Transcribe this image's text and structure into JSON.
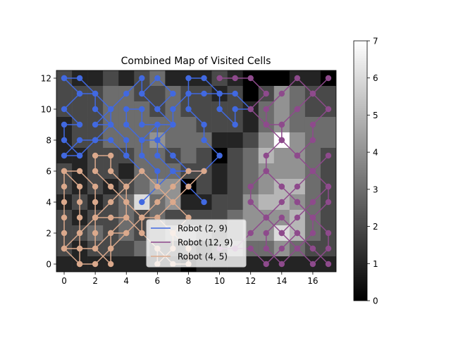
{
  "chart_data": {
    "type": "heatmap",
    "title": "Combined Map of Visited Cells",
    "xlabel": "",
    "ylabel": "",
    "xlim": [
      -0.5,
      17.5
    ],
    "ylim": [
      -0.5,
      12.5
    ],
    "xticks": [
      0,
      2,
      4,
      6,
      8,
      10,
      12,
      14,
      16
    ],
    "yticks": [
      0,
      2,
      4,
      6,
      8,
      10,
      12
    ],
    "colorbar": {
      "min": 0,
      "max": 7,
      "ticks": [
        0,
        1,
        2,
        3,
        4,
        5,
        6,
        7
      ],
      "colormap": "gray"
    },
    "grid_values": [
      [
        2,
        1,
        1,
        2,
        1,
        2,
        3,
        1,
        1,
        1,
        2,
        1,
        0,
        0,
        0,
        1,
        1,
        0
      ],
      [
        2,
        2,
        2,
        3,
        3,
        2,
        2,
        3,
        2,
        2,
        1,
        2,
        0,
        2,
        4,
        3,
        2,
        2
      ],
      [
        2,
        2,
        2,
        3,
        3,
        3,
        2,
        3,
        2,
        2,
        2,
        2,
        1,
        3,
        4,
        3,
        2,
        2
      ],
      [
        1,
        2,
        2,
        3,
        3,
        3,
        3,
        3,
        3,
        2,
        2,
        2,
        1,
        3,
        4,
        3,
        3,
        3
      ],
      [
        1,
        2,
        2,
        3,
        3,
        3,
        4,
        3,
        3,
        3,
        1,
        1,
        2,
        4,
        7,
        4,
        3,
        3
      ],
      [
        1,
        1,
        2,
        2,
        2,
        3,
        3,
        2,
        3,
        2,
        0,
        2,
        3,
        5,
        4,
        4,
        3,
        2
      ],
      [
        2,
        1,
        2,
        2,
        1,
        3,
        3,
        3,
        2,
        2,
        1,
        2,
        3,
        4,
        4,
        4,
        3,
        2
      ],
      [
        2,
        1,
        2,
        1,
        2,
        3,
        4,
        4,
        0,
        2,
        1,
        2,
        3,
        4,
        5,
        5,
        3,
        2
      ],
      [
        1,
        2,
        1,
        2,
        3,
        6,
        3,
        4,
        1,
        1,
        2,
        2,
        4,
        5,
        5,
        4,
        3,
        2
      ],
      [
        2,
        1,
        2,
        2,
        3,
        2,
        3,
        2,
        2,
        2,
        2,
        3,
        4,
        4,
        4,
        5,
        3,
        2
      ],
      [
        2,
        2,
        3,
        2,
        3,
        2,
        3,
        4,
        4,
        3,
        2,
        3,
        4,
        4,
        6,
        5,
        3,
        2
      ],
      [
        2,
        1,
        2,
        2,
        2,
        3,
        2,
        2,
        2,
        1,
        2,
        4,
        3,
        3,
        4,
        3,
        2,
        2
      ],
      [
        1,
        1,
        1,
        1,
        1,
        1,
        1,
        1,
        0,
        1,
        1,
        1,
        1,
        1,
        1,
        1,
        1,
        1
      ]
    ],
    "series": [
      {
        "name": "Robot (2, 9)",
        "color": "#4169e1",
        "x": [
          0,
          1,
          0,
          1,
          0,
          0,
          1,
          2,
          3,
          2,
          2,
          1,
          0,
          1,
          2,
          3,
          3,
          2,
          1,
          0,
          1,
          2,
          3,
          4,
          5,
          4,
          4,
          3,
          2,
          3,
          4,
          5,
          5,
          6,
          7,
          6,
          5,
          6,
          7,
          6,
          7,
          8,
          7,
          6,
          5,
          6,
          6,
          5,
          5,
          6,
          7,
          7,
          8,
          8,
          9,
          10,
          10,
          11,
          11,
          12,
          11,
          10,
          9,
          8,
          8,
          9,
          9,
          10,
          9,
          8,
          7,
          6,
          6,
          5,
          5,
          4,
          4,
          5,
          6,
          6,
          7,
          8,
          9
        ],
        "y": [
          12,
          11,
          10,
          9,
          9,
          8,
          7,
          8,
          9,
          10,
          11,
          12,
          12,
          11,
          11,
          10,
          9,
          8,
          7,
          7,
          8,
          8,
          8,
          7,
          6,
          7,
          8,
          9,
          9,
          10,
          11,
          12,
          11,
          10,
          11,
          12,
          11,
          10,
          9,
          8,
          7,
          6,
          6,
          5,
          4,
          5,
          6,
          7,
          8,
          9,
          9,
          10,
          11,
          12,
          12,
          11,
          10,
          9,
          10,
          10,
          11,
          11,
          11,
          11,
          10,
          9,
          8,
          7,
          6,
          6,
          7,
          8,
          9,
          9,
          10,
          10,
          9,
          8,
          8,
          7,
          6,
          5,
          4
        ]
      },
      {
        "name": "Robot (12, 9)",
        "color": "#8e4a8c",
        "x": [
          10,
          11,
          12,
          13,
          12,
          13,
          14,
          15,
          16,
          17,
          16,
          15,
          14,
          13,
          13,
          14,
          15,
          16,
          16,
          17,
          16,
          15,
          14,
          14,
          15,
          16,
          17,
          17,
          16,
          15,
          14,
          13,
          12,
          12,
          13,
          14,
          15,
          16,
          17,
          16,
          15,
          14,
          13,
          13,
          14,
          15,
          16,
          17,
          17,
          16,
          15,
          14,
          13,
          12,
          12,
          13,
          14,
          15,
          16,
          16,
          15,
          14,
          13,
          13,
          14,
          15,
          16,
          17,
          16,
          15,
          14,
          13,
          12,
          11,
          10,
          11,
          12,
          13,
          14,
          15,
          16,
          17
        ],
        "y": [
          12,
          12,
          12,
          11,
          10,
          9,
          9,
          10,
          11,
          12,
          11,
          12,
          11,
          10,
          9,
          8,
          7,
          8,
          9,
          10,
          11,
          10,
          9,
          8,
          7,
          6,
          5,
          4,
          3,
          4,
          5,
          6,
          5,
          4,
          3,
          2,
          3,
          4,
          5,
          6,
          7,
          8,
          7,
          6,
          5,
          4,
          3,
          2,
          1,
          0,
          1,
          2,
          3,
          4,
          5,
          6,
          5,
          4,
          3,
          2,
          1,
          0,
          1,
          2,
          3,
          2,
          1,
          0,
          1,
          2,
          1,
          0,
          1,
          1,
          1,
          1,
          2,
          3,
          4,
          5,
          6,
          7
        ]
      },
      {
        "name": "Robot (4, 5)",
        "color": "#dba98c",
        "x": [
          0,
          0,
          0,
          0,
          0,
          0,
          1,
          1,
          1,
          1,
          1,
          1,
          0,
          1,
          2,
          2,
          2,
          2,
          2,
          3,
          3,
          3,
          4,
          4,
          4,
          3,
          3,
          2,
          2,
          3,
          4,
          5,
          5,
          6,
          6,
          7,
          7,
          8,
          7,
          6,
          5,
          4,
          3,
          2,
          1,
          0,
          1,
          2,
          3,
          4,
          5,
          6,
          7,
          8,
          9,
          8,
          7,
          6,
          5,
          4,
          3,
          2,
          1,
          0,
          1,
          2,
          3,
          4,
          5,
          6,
          7,
          8,
          8,
          7,
          6
        ],
        "y": [
          6,
          5,
          4,
          3,
          2,
          1,
          0,
          1,
          2,
          3,
          4,
          5,
          6,
          6,
          5,
          4,
          3,
          2,
          1,
          0,
          1,
          2,
          3,
          4,
          5,
          6,
          7,
          7,
          6,
          5,
          4,
          3,
          2,
          1,
          0,
          1,
          2,
          3,
          4,
          5,
          6,
          5,
          4,
          3,
          2,
          1,
          0,
          0,
          1,
          2,
          3,
          3,
          4,
          5,
          6,
          6,
          5,
          4,
          3,
          2,
          2,
          1,
          1,
          1,
          2,
          3,
          3,
          3,
          2,
          1,
          0,
          0,
          1,
          2,
          3
        ]
      }
    ],
    "legend": {
      "placement": "lower-center",
      "entries": [
        "Robot (2, 9)",
        "Robot (12, 9)",
        "Robot (4, 5)"
      ]
    }
  }
}
